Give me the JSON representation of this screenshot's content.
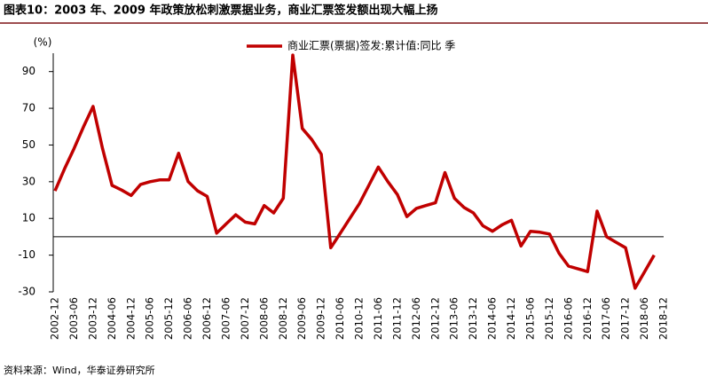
{
  "chart_data": {
    "type": "line",
    "title": "图表10：2003 年、2009 年政策放松刺激票据业务，商业汇票签发额出现大幅上扬",
    "y_label": "(%)",
    "source": "资料来源：Wind，华泰证券研究所",
    "categories": [
      "2002-12",
      null,
      "2003-06",
      null,
      "2003-12",
      null,
      "2004-06",
      null,
      "2004-12",
      null,
      "2005-06",
      null,
      "2005-12",
      null,
      "2006-06",
      null,
      "2006-12",
      null,
      "2007-06",
      null,
      "2007-12",
      null,
      "2008-06",
      null,
      "2008-12",
      null,
      "2009-06",
      null,
      "2009-12",
      null,
      "2010-06",
      null,
      "2010-12",
      null,
      "2011-06",
      null,
      "2011-12",
      null,
      "2012-06",
      null,
      "2012-12",
      null,
      "2013-06",
      null,
      "2013-12",
      null,
      "2014-06",
      null,
      "2014-12",
      null,
      "2015-06",
      null,
      "2015-12",
      null,
      "2016-06",
      null,
      "2016-12",
      null,
      "2017-06",
      null,
      "2017-12",
      null,
      "2018-06",
      null,
      "2018-12"
    ],
    "series": [
      {
        "name": "商业汇票(票据)签发:累计值:同比 季",
        "color": "#c00000",
        "values": [
          25,
          37,
          48,
          60,
          71,
          48,
          28,
          25.5,
          22.5,
          28.5,
          30,
          31,
          31,
          45.5,
          30,
          25,
          22,
          2,
          7,
          12,
          8,
          7,
          17,
          13,
          21,
          99,
          59,
          53,
          45,
          -6,
          2,
          10,
          18,
          28,
          38,
          30,
          23,
          11,
          15.5,
          17,
          18.5,
          35,
          21,
          16,
          13,
          6,
          3,
          6.5,
          9,
          -5,
          3,
          2.5,
          1.5,
          -9,
          -16,
          -17.5,
          -19,
          14,
          0,
          -3,
          -6,
          -28,
          -19,
          -10,
          null
        ]
      }
    ],
    "ylim": [
      -30,
      100
    ],
    "yticks": [
      90,
      70,
      50,
      30,
      10,
      -10,
      -30
    ],
    "grid": false,
    "legend": "top"
  }
}
